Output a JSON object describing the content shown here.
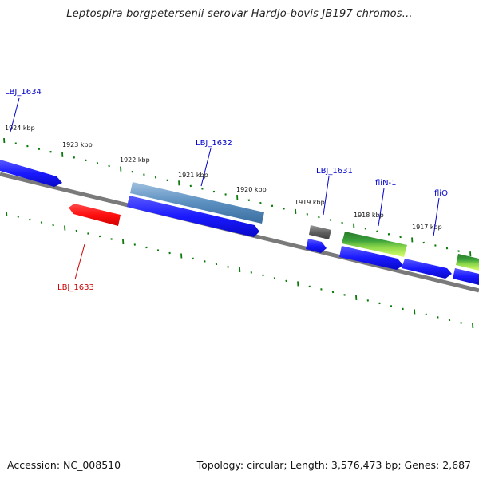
{
  "title": "Leptospira borgpetersenii serovar Hardjo-bovis JB197 chromos...",
  "footer": {
    "accession": "Accession: NC_008510",
    "summary": "Topology: circular; Length: 3,576,473 bp; Genes: 2,687"
  },
  "colors": {
    "backbone": "#7a7a7a",
    "ticks": "#0a7a0a",
    "forward_gene": "#1a1aff",
    "reverse_gene": "#ff1010",
    "label_blue": "#0000cc",
    "label_red": "#cc0000"
  },
  "scale_labels": [
    "1924 kbp",
    "1923 kbp",
    "1922 kbp",
    "1921 kbp",
    "1920 kbp",
    "1919 kbp",
    "1918 kbp",
    "1917 kbp"
  ],
  "gene_labels": [
    {
      "text": "LBJ_1634",
      "color": "#0000cc"
    },
    {
      "text": "LBJ_1632",
      "color": "#0000cc"
    },
    {
      "text": "LBJ_1631",
      "color": "#0000cc"
    },
    {
      "text": "fliN-1",
      "color": "#0000cc"
    },
    {
      "text": "fliO",
      "color": "#0000cc"
    },
    {
      "text": "LBJ_1633",
      "color": "#cc0000"
    }
  ]
}
